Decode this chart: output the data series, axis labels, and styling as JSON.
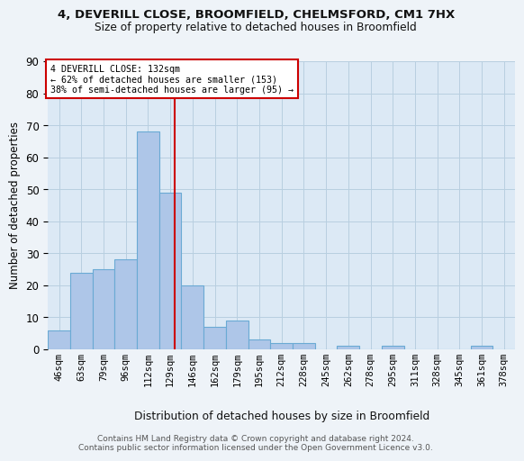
{
  "title1": "4, DEVERILL CLOSE, BROOMFIELD, CHELMSFORD, CM1 7HX",
  "title2": "Size of property relative to detached houses in Broomfield",
  "xlabel": "Distribution of detached houses by size in Broomfield",
  "ylabel": "Number of detached properties",
  "footer1": "Contains HM Land Registry data © Crown copyright and database right 2024.",
  "footer2": "Contains public sector information licensed under the Open Government Licence v3.0.",
  "bin_labels": [
    "46sqm",
    "63sqm",
    "79sqm",
    "96sqm",
    "112sqm",
    "129sqm",
    "146sqm",
    "162sqm",
    "179sqm",
    "195sqm",
    "212sqm",
    "228sqm",
    "245sqm",
    "262sqm",
    "278sqm",
    "295sqm",
    "311sqm",
    "328sqm",
    "345sqm",
    "361sqm",
    "378sqm"
  ],
  "bar_values": [
    6,
    24,
    25,
    28,
    68,
    49,
    20,
    7,
    9,
    3,
    2,
    2,
    0,
    1,
    0,
    1,
    0,
    0,
    0,
    1,
    0
  ],
  "bar_color": "#aec6e8",
  "bar_edge_color": "#6aaad4",
  "annotation_line1": "4 DEVERILL CLOSE: 132sqm",
  "annotation_line2": "← 62% of detached houses are smaller (153)",
  "annotation_line3": "38% of semi-detached houses are larger (95) →",
  "vline_color": "#cc0000",
  "vline_x": 5.18,
  "grid_color": "#b8cfe0",
  "bg_color": "#dce9f5",
  "fig_bg_color": "#eef3f8",
  "ylim": [
    0,
    90
  ],
  "yticks": [
    0,
    10,
    20,
    30,
    40,
    50,
    60,
    70,
    80,
    90
  ]
}
